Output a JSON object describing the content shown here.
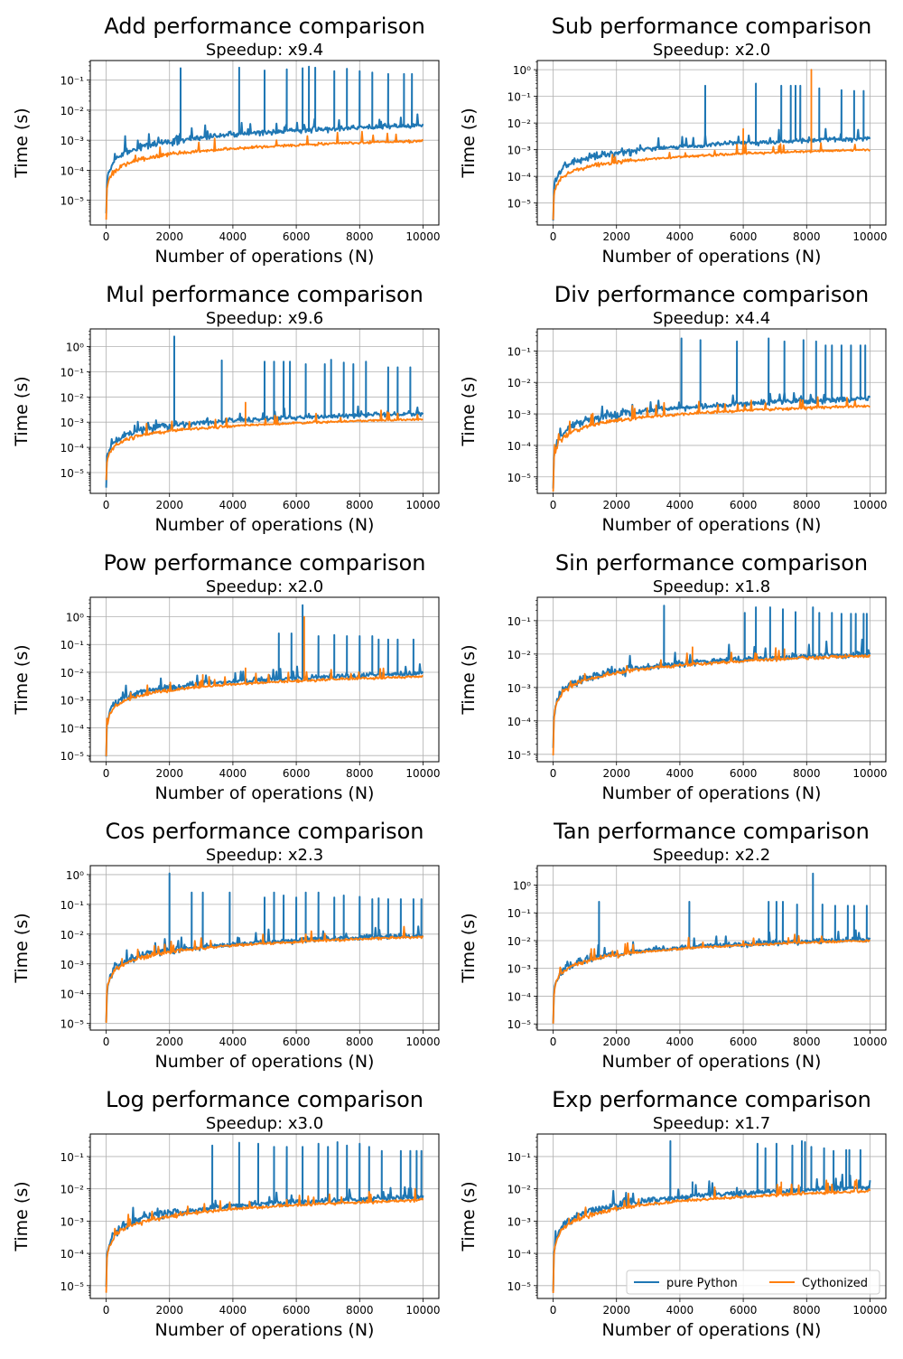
{
  "colors": {
    "pure_python": "#1f77b4",
    "cythonized": "#ff7f0e",
    "grid": "#b0b0b0"
  },
  "legend": {
    "placement": "lower-right",
    "columns": 2,
    "labels": [
      "pure Python",
      "Cythonized"
    ]
  },
  "chart_data": [
    {
      "type": "line",
      "title": "Add performance comparison",
      "subtitle": "Speedup: x9.4",
      "xlabel": "Number of operations (N)",
      "ylabel": "Time (s)",
      "yscale": "log",
      "xlim": [
        -500,
        10500
      ],
      "ylim": [
        1.5e-06,
        0.45
      ],
      "grid": true,
      "x_ticks": [
        "0",
        "2000",
        "4000",
        "6000",
        "8000",
        "10000"
      ],
      "y_ticks": [
        "10⁻⁵",
        "10⁻⁴",
        "10⁻³",
        "10⁻²",
        "10⁻¹"
      ],
      "series": [
        {
          "name": "pure Python",
          "y_at_n1": 3e-06,
          "y_at_n10000": 0.0031,
          "spikes": [
            [
              2350,
              0.25
            ],
            [
              4200,
              0.26
            ],
            [
              5000,
              0.21
            ],
            [
              5700,
              0.23
            ],
            [
              6200,
              0.25
            ],
            [
              6400,
              0.28
            ],
            [
              6600,
              0.26
            ],
            [
              7200,
              0.2
            ],
            [
              7600,
              0.24
            ],
            [
              8000,
              0.2
            ],
            [
              8400,
              0.18
            ],
            [
              8900,
              0.16
            ],
            [
              9400,
              0.16
            ],
            [
              9650,
              0.16
            ]
          ]
        },
        {
          "name": "Cythonized",
          "y_at_n1": 2.5e-06,
          "y_at_n10000": 0.00095,
          "spikes": []
        }
      ]
    },
    {
      "type": "line",
      "title": "Sub performance comparison",
      "subtitle": "Speedup: x2.0",
      "xlabel": "Number of operations (N)",
      "ylabel": "Time (s)",
      "yscale": "log",
      "xlim": [
        -500,
        10500
      ],
      "ylim": [
        1.5e-06,
        2.2
      ],
      "grid": true,
      "x_ticks": [
        "0",
        "2000",
        "4000",
        "6000",
        "8000",
        "10000"
      ],
      "y_ticks": [
        "10⁻⁵",
        "10⁻⁴",
        "10⁻³",
        "10⁻²",
        "10⁻¹",
        "10⁰"
      ],
      "series": [
        {
          "name": "pure Python",
          "y_at_n1": 2.5e-06,
          "y_at_n10000": 0.0026,
          "spikes": [
            [
              4800,
              0.25
            ],
            [
              6400,
              0.3
            ],
            [
              7200,
              0.25
            ],
            [
              7500,
              0.25
            ],
            [
              7650,
              0.25
            ],
            [
              7800,
              0.25
            ],
            [
              8400,
              0.2
            ],
            [
              9100,
              0.17
            ],
            [
              9500,
              0.16
            ],
            [
              9800,
              0.16
            ]
          ]
        },
        {
          "name": "Cythonized",
          "y_at_n1": 2e-06,
          "y_at_n10000": 0.001,
          "spikes": [
            [
              6000,
              0.006
            ],
            [
              8150,
              1.0
            ]
          ]
        }
      ]
    },
    {
      "type": "line",
      "title": "Mul performance comparison",
      "subtitle": "Speedup: x9.6",
      "xlabel": "Number of operations (N)",
      "ylabel": "Time (s)",
      "yscale": "log",
      "xlim": [
        -500,
        10500
      ],
      "ylim": [
        1.5e-06,
        5
      ],
      "grid": true,
      "x_ticks": [
        "0",
        "2000",
        "4000",
        "6000",
        "8000",
        "10000"
      ],
      "y_ticks": [
        "10⁻⁵",
        "10⁻⁴",
        "10⁻³",
        "10⁻²",
        "10⁻¹",
        "10⁰"
      ],
      "series": [
        {
          "name": "pure Python",
          "y_at_n1": 3e-06,
          "y_at_n10000": 0.0022,
          "spikes": [
            [
              2150,
              2.5
            ],
            [
              3650,
              0.28
            ],
            [
              5000,
              0.25
            ],
            [
              5300,
              0.25
            ],
            [
              5600,
              0.25
            ],
            [
              5800,
              0.25
            ],
            [
              6300,
              0.2
            ],
            [
              6900,
              0.2
            ],
            [
              7100,
              0.3
            ],
            [
              7500,
              0.23
            ],
            [
              7800,
              0.2
            ],
            [
              8200,
              0.25
            ],
            [
              8900,
              0.15
            ],
            [
              9200,
              0.15
            ],
            [
              9600,
              0.15
            ]
          ]
        },
        {
          "name": "Cythonized",
          "y_at_n1": 2.5e-06,
          "y_at_n10000": 0.0013,
          "spikes": [
            [
              4400,
              0.006
            ]
          ]
        }
      ]
    },
    {
      "type": "line",
      "title": "Div performance comparison",
      "subtitle": "Speedup: x4.4",
      "xlabel": "Number of operations (N)",
      "ylabel": "Time (s)",
      "yscale": "log",
      "xlim": [
        -500,
        10500
      ],
      "ylim": [
        3e-06,
        0.5
      ],
      "grid": true,
      "x_ticks": [
        "0",
        "2000",
        "4000",
        "6000",
        "8000",
        "10000"
      ],
      "y_ticks": [
        "10⁻⁵",
        "10⁻⁴",
        "10⁻³",
        "10⁻²",
        "10⁻¹"
      ],
      "series": [
        {
          "name": "pure Python",
          "y_at_n1": 4e-06,
          "y_at_n10000": 0.003,
          "spikes": [
            [
              4050,
              0.25
            ],
            [
              4650,
              0.22
            ],
            [
              5800,
              0.2
            ],
            [
              6800,
              0.25
            ],
            [
              7300,
              0.2
            ],
            [
              7900,
              0.22
            ],
            [
              8300,
              0.2
            ],
            [
              8600,
              0.15
            ],
            [
              8800,
              0.15
            ],
            [
              9100,
              0.15
            ],
            [
              9400,
              0.15
            ],
            [
              9700,
              0.15
            ],
            [
              9850,
              0.15
            ]
          ]
        },
        {
          "name": "Cythonized",
          "y_at_n1": 3.5e-06,
          "y_at_n10000": 0.0018,
          "spikes": []
        }
      ]
    },
    {
      "type": "line",
      "title": "Pow performance comparison",
      "subtitle": "Speedup: x2.0",
      "xlabel": "Number of operations (N)",
      "ylabel": "Time (s)",
      "yscale": "log",
      "xlim": [
        -500,
        10500
      ],
      "ylim": [
        6e-06,
        5
      ],
      "grid": true,
      "x_ticks": [
        "0",
        "2000",
        "4000",
        "6000",
        "8000",
        "10000"
      ],
      "y_ticks": [
        "10⁻⁵",
        "10⁻⁴",
        "10⁻³",
        "10⁻²",
        "10⁻¹",
        "10⁰"
      ],
      "series": [
        {
          "name": "pure Python",
          "y_at_n1": 1.2e-05,
          "y_at_n10000": 0.009,
          "spikes": [
            [
              5450,
              0.25
            ],
            [
              5850,
              0.25
            ],
            [
              6200,
              2.6
            ],
            [
              6700,
              0.2
            ],
            [
              7200,
              0.22
            ],
            [
              7600,
              0.2
            ],
            [
              8000,
              0.2
            ],
            [
              8400,
              0.2
            ],
            [
              8600,
              0.15
            ],
            [
              8900,
              0.15
            ],
            [
              9200,
              0.15
            ],
            [
              9700,
              0.15
            ]
          ]
        },
        {
          "name": "Cythonized",
          "y_at_n1": 1e-05,
          "y_at_n10000": 0.007,
          "spikes": [
            [
              3050,
              0.008
            ],
            [
              4400,
              0.014
            ],
            [
              6250,
              1.0
            ]
          ]
        }
      ]
    },
    {
      "type": "line",
      "title": "Sin performance comparison",
      "subtitle": "Speedup: x1.8",
      "xlabel": "Number of operations (N)",
      "ylabel": "Time (s)",
      "yscale": "log",
      "xlim": [
        -500,
        10500
      ],
      "ylim": [
        6e-06,
        0.5
      ],
      "grid": true,
      "x_ticks": [
        "0",
        "2000",
        "4000",
        "6000",
        "8000",
        "10000"
      ],
      "y_ticks": [
        "10⁻⁵",
        "10⁻⁴",
        "10⁻³",
        "10⁻²",
        "10⁻¹"
      ],
      "series": [
        {
          "name": "pure Python",
          "y_at_n1": 1.2e-05,
          "y_at_n10000": 0.01,
          "spikes": [
            [
              3500,
              0.28
            ],
            [
              6050,
              0.17
            ],
            [
              6400,
              0.25
            ],
            [
              6850,
              0.25
            ],
            [
              7250,
              0.22
            ],
            [
              7650,
              0.18
            ],
            [
              8200,
              0.25
            ],
            [
              8400,
              0.17
            ],
            [
              8800,
              0.17
            ],
            [
              9100,
              0.16
            ],
            [
              9400,
              0.16
            ],
            [
              9550,
              0.16
            ],
            [
              9800,
              0.16
            ],
            [
              9900,
              0.16
            ]
          ]
        },
        {
          "name": "Cythonized",
          "y_at_n1": 1e-05,
          "y_at_n10000": 0.009,
          "spikes": [
            [
              4400,
              0.016
            ],
            [
              7300,
              0.014
            ]
          ]
        }
      ]
    },
    {
      "type": "line",
      "title": "Cos performance comparison",
      "subtitle": "Speedup: x2.3",
      "xlabel": "Number of operations (N)",
      "ylabel": "Time (s)",
      "yscale": "log",
      "xlim": [
        -500,
        10500
      ],
      "ylim": [
        6e-06,
        2
      ],
      "grid": true,
      "x_ticks": [
        "0",
        "2000",
        "4000",
        "6000",
        "8000",
        "10000"
      ],
      "y_ticks": [
        "10⁻⁵",
        "10⁻⁴",
        "10⁻³",
        "10⁻²",
        "10⁻¹",
        "10⁰"
      ],
      "series": [
        {
          "name": "pure Python",
          "y_at_n1": 1.2e-05,
          "y_at_n10000": 0.009,
          "spikes": [
            [
              2000,
              1.1
            ],
            [
              2700,
              0.25
            ],
            [
              3050,
              0.25
            ],
            [
              3900,
              0.25
            ],
            [
              5000,
              0.17
            ],
            [
              5300,
              0.25
            ],
            [
              5600,
              0.2
            ],
            [
              6000,
              0.17
            ],
            [
              6300,
              0.25
            ],
            [
              6700,
              0.25
            ],
            [
              7200,
              0.17
            ],
            [
              7500,
              0.2
            ],
            [
              8000,
              0.18
            ],
            [
              8400,
              0.15
            ],
            [
              8600,
              0.16
            ],
            [
              8900,
              0.15
            ],
            [
              9300,
              0.15
            ],
            [
              9700,
              0.15
            ],
            [
              9950,
              0.15
            ]
          ]
        },
        {
          "name": "Cythonized",
          "y_at_n1": 1e-05,
          "y_at_n10000": 0.008,
          "spikes": [
            [
              500,
              0.0015
            ]
          ]
        }
      ]
    },
    {
      "type": "line",
      "title": "Tan performance comparison",
      "subtitle": "Speedup: x2.2",
      "xlabel": "Number of operations (N)",
      "ylabel": "Time (s)",
      "yscale": "log",
      "xlim": [
        -500,
        10500
      ],
      "ylim": [
        6e-06,
        5
      ],
      "grid": true,
      "x_ticks": [
        "0",
        "2000",
        "4000",
        "6000",
        "8000",
        "10000"
      ],
      "y_ticks": [
        "10⁻⁵",
        "10⁻⁴",
        "10⁻³",
        "10⁻²",
        "10⁻¹",
        "10⁰"
      ],
      "series": [
        {
          "name": "pure Python",
          "y_at_n1": 1.2e-05,
          "y_at_n10000": 0.011,
          "spikes": [
            [
              1450,
              0.25
            ],
            [
              4300,
              0.25
            ],
            [
              6800,
              0.25
            ],
            [
              7050,
              0.25
            ],
            [
              7250,
              0.25
            ],
            [
              7700,
              0.2
            ],
            [
              8200,
              2.6
            ],
            [
              8500,
              0.2
            ],
            [
              8900,
              0.18
            ],
            [
              9300,
              0.18
            ],
            [
              9500,
              0.18
            ],
            [
              9900,
              0.18
            ]
          ]
        },
        {
          "name": "Cythonized",
          "y_at_n1": 1e-05,
          "y_at_n10000": 0.01,
          "spikes": []
        }
      ]
    },
    {
      "type": "line",
      "title": "Log performance comparison",
      "subtitle": "Speedup: x3.0",
      "xlabel": "Number of operations (N)",
      "ylabel": "Time (s)",
      "yscale": "log",
      "xlim": [
        -500,
        10500
      ],
      "ylim": [
        4e-06,
        0.5
      ],
      "grid": true,
      "x_ticks": [
        "0",
        "2000",
        "4000",
        "6000",
        "8000",
        "10000"
      ],
      "y_ticks": [
        "10⁻⁵",
        "10⁻⁴",
        "10⁻³",
        "10⁻²",
        "10⁻¹"
      ],
      "series": [
        {
          "name": "pure Python",
          "y_at_n1": 8e-06,
          "y_at_n10000": 0.0055,
          "spikes": [
            [
              3350,
              0.22
            ],
            [
              4200,
              0.27
            ],
            [
              4800,
              0.25
            ],
            [
              5300,
              0.2
            ],
            [
              5700,
              0.2
            ],
            [
              6200,
              0.2
            ],
            [
              6700,
              0.25
            ],
            [
              7000,
              0.2
            ],
            [
              7300,
              0.28
            ],
            [
              7600,
              0.22
            ],
            [
              8000,
              0.25
            ],
            [
              8300,
              0.2
            ],
            [
              8700,
              0.15
            ],
            [
              9300,
              0.15
            ],
            [
              9600,
              0.15
            ],
            [
              9800,
              0.15
            ],
            [
              9950,
              0.15
            ]
          ]
        },
        {
          "name": "Cythonized",
          "y_at_n1": 6e-06,
          "y_at_n10000": 0.0045,
          "spikes": []
        }
      ]
    },
    {
      "type": "line",
      "title": "Exp performance comparison",
      "subtitle": "Speedup: x1.7",
      "xlabel": "Number of operations (N)",
      "ylabel": "Time (s)",
      "yscale": "log",
      "xlim": [
        -500,
        10500
      ],
      "ylim": [
        4e-06,
        0.5
      ],
      "grid": true,
      "x_ticks": [
        "0",
        "2000",
        "4000",
        "6000",
        "8000",
        "10000"
      ],
      "y_ticks": [
        "10⁻⁵",
        "10⁻⁴",
        "10⁻³",
        "10⁻²",
        "10⁻¹"
      ],
      "series": [
        {
          "name": "pure Python",
          "y_at_n1": 8e-06,
          "y_at_n10000": 0.011,
          "spikes": [
            [
              3700,
              0.3
            ],
            [
              4400,
              0.016
            ],
            [
              6450,
              0.25
            ],
            [
              6700,
              0.18
            ],
            [
              7050,
              0.25
            ],
            [
              7550,
              0.22
            ],
            [
              7850,
              0.3
            ],
            [
              7950,
              0.28
            ],
            [
              8150,
              0.2
            ],
            [
              8550,
              0.18
            ],
            [
              8850,
              0.15
            ],
            [
              9250,
              0.16
            ],
            [
              9350,
              0.16
            ],
            [
              9700,
              0.16
            ]
          ]
        },
        {
          "name": "Cythonized",
          "y_at_n1": 6e-06,
          "y_at_n10000": 0.0085,
          "spikes": [
            [
              500,
              0.0012
            ],
            [
              7200,
              0.016
            ]
          ]
        }
      ]
    }
  ]
}
